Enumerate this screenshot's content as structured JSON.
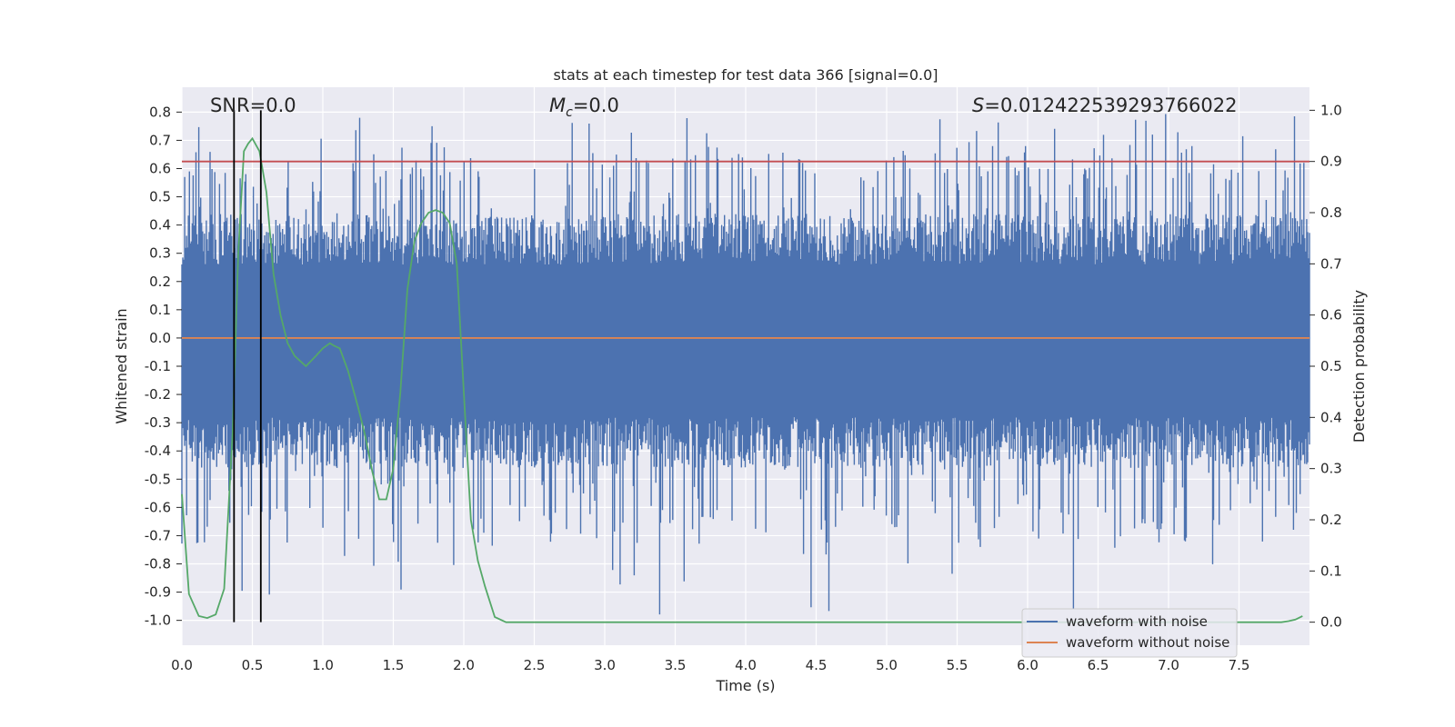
{
  "chart_data": {
    "type": "line",
    "title": "stats at each timestep for test data 366 [signal=0.0]",
    "xlabel": "Time (s)",
    "ylabel_left": "Whitened strain",
    "ylabel_right": "Detection probability",
    "xlim": [
      0.0,
      8.0
    ],
    "ylim_left": [
      -1.088,
      0.888
    ],
    "ylim_right": [
      -0.045,
      1.045
    ],
    "xticks": [
      "0.0",
      "0.5",
      "1.0",
      "1.5",
      "2.0",
      "2.5",
      "3.0",
      "3.5",
      "4.0",
      "4.5",
      "5.0",
      "5.5",
      "6.0",
      "6.5",
      "7.0",
      "7.5"
    ],
    "yticks_left": [
      "0.8",
      "0.7",
      "0.6",
      "0.5",
      "0.4",
      "0.3",
      "0.2",
      "0.1",
      "0.0",
      "-0.1",
      "-0.2",
      "-0.3",
      "-0.4",
      "-0.5",
      "-0.6",
      "-0.7",
      "-0.8",
      "-0.9",
      "-1.0"
    ],
    "yticks_right": [
      "1.0",
      "0.9",
      "0.8",
      "0.7",
      "0.6",
      "0.5",
      "0.4",
      "0.3",
      "0.2",
      "0.1",
      "0.0"
    ],
    "annotations": {
      "snr": "SNR=0.0",
      "mc_symbol": "M",
      "mc_sub": "c",
      "mc_value": "=0.0",
      "s_symbol": "S",
      "s_value": "=0.012422539293766022"
    },
    "threshold_probability": 0.9,
    "vertical_markers_time": [
      0.37,
      0.56
    ],
    "noise_envelope": {
      "band_low": -0.28,
      "band_high": 0.26,
      "spike_max": 0.8,
      "spike_min": -1.0,
      "points": 1200
    },
    "series": [
      {
        "name": "waveform with noise",
        "color": "#4c72b0",
        "axis": "left",
        "kind": "noise"
      },
      {
        "name": "waveform without noise",
        "color": "#dd8452",
        "axis": "left",
        "constant": 0.0
      },
      {
        "name": "detection probability",
        "color": "#55a868",
        "axis": "right",
        "x": [
          0.0,
          0.05,
          0.12,
          0.18,
          0.24,
          0.3,
          0.36,
          0.4,
          0.44,
          0.47,
          0.5,
          0.55,
          0.6,
          0.65,
          0.7,
          0.75,
          0.8,
          0.88,
          0.95,
          1.0,
          1.05,
          1.08,
          1.12,
          1.18,
          1.25,
          1.3,
          1.35,
          1.4,
          1.45,
          1.5,
          1.55,
          1.6,
          1.65,
          1.7,
          1.75,
          1.8,
          1.85,
          1.9,
          1.95,
          2.0,
          2.05,
          2.1,
          2.15,
          2.22,
          2.3,
          2.5,
          3.0,
          3.5,
          4.0,
          4.5,
          5.0,
          5.5,
          6.0,
          6.5,
          7.0,
          7.5,
          7.7,
          7.8,
          7.85,
          7.9,
          7.95
        ],
        "y": [
          0.25,
          0.055,
          0.012,
          0.008,
          0.015,
          0.065,
          0.37,
          0.72,
          0.92,
          0.935,
          0.945,
          0.92,
          0.84,
          0.68,
          0.6,
          0.545,
          0.52,
          0.5,
          0.52,
          0.535,
          0.545,
          0.54,
          0.535,
          0.49,
          0.42,
          0.365,
          0.295,
          0.24,
          0.24,
          0.3,
          0.45,
          0.65,
          0.745,
          0.78,
          0.8,
          0.805,
          0.8,
          0.78,
          0.7,
          0.45,
          0.2,
          0.12,
          0.07,
          0.01,
          0.0,
          0.0,
          0.0,
          0.0,
          0.0,
          0.0,
          0.0,
          0.0,
          0.0,
          0.0,
          0.0,
          0.0,
          0.0,
          0.0,
          0.002,
          0.005,
          0.012
        ]
      },
      {
        "name": "threshold",
        "color": "#c44e52",
        "axis": "right",
        "constant": 0.9
      }
    ],
    "legend": {
      "position": "lower-right",
      "entries": [
        {
          "label": "waveform with noise",
          "color": "#4c72b0"
        },
        {
          "label": "waveform without noise",
          "color": "#dd8452"
        }
      ]
    },
    "grid": true
  }
}
